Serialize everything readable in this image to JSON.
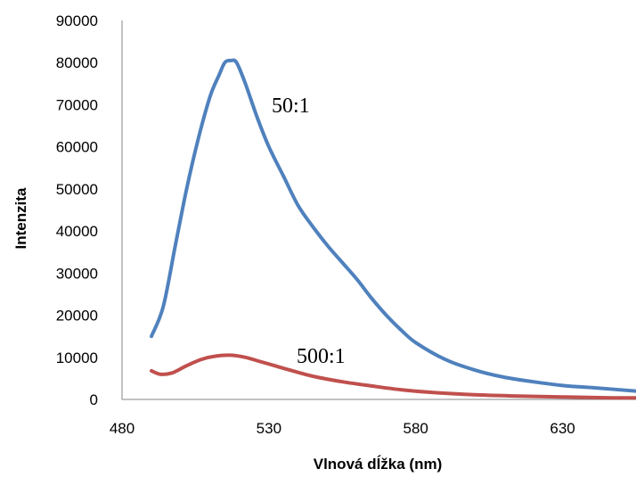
{
  "chart_data": {
    "type": "line",
    "title": "",
    "xlabel": "Vlnová dĺžka (nm)",
    "ylabel": "Intenzita",
    "xlim": [
      480,
      655
    ],
    "ylim": [
      0,
      90000
    ],
    "xticks": [
      480,
      530,
      580,
      630
    ],
    "yticks": [
      0,
      10000,
      20000,
      30000,
      40000,
      50000,
      60000,
      70000,
      80000,
      90000
    ],
    "grid": false,
    "legend": "none",
    "series": [
      {
        "name": "50:1",
        "color": "#4f81bd",
        "x": [
          490,
          494,
          498,
          502,
          506,
          510,
          513,
          515,
          517,
          519,
          522,
          526,
          530,
          535,
          540,
          545,
          550,
          555,
          560,
          565,
          570,
          575,
          580,
          590,
          600,
          610,
          620,
          630,
          640,
          655
        ],
        "y": [
          15000,
          22000,
          36000,
          50000,
          62000,
          72000,
          77000,
          80000,
          80500,
          80000,
          75000,
          67000,
          60000,
          53000,
          46000,
          41000,
          36500,
          32500,
          28500,
          24000,
          20000,
          16500,
          13500,
          9500,
          7000,
          5300,
          4200,
          3300,
          2800,
          2000
        ]
      },
      {
        "name": "500:1",
        "color": "#c0504d",
        "x": [
          490,
          493,
          497,
          502,
          507,
          512,
          517,
          522,
          527,
          532,
          537,
          545,
          555,
          565,
          575,
          585,
          600,
          615,
          630,
          645,
          655
        ],
        "y": [
          6800,
          6000,
          6300,
          8000,
          9500,
          10300,
          10500,
          10000,
          9000,
          8000,
          7000,
          5500,
          4200,
          3200,
          2300,
          1700,
          1100,
          800,
          600,
          400,
          350
        ]
      }
    ]
  }
}
